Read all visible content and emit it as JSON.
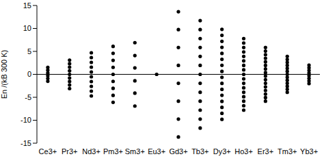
{
  "chart_data": {
    "type": "scatter",
    "y_label": "En /(kB 300 K)",
    "categories": [
      "Ce3+",
      "Pr3+",
      "Nd3+",
      "Pm3+",
      "Sm3+",
      "Eu3+",
      "Gd3+",
      "Tb3+",
      "Dy3+",
      "Ho3+",
      "Er3+",
      "Tm3+",
      "Yb3+"
    ],
    "values": [
      [
        -1.5,
        -0.9,
        -0.3,
        0.3,
        0.9,
        1.5
      ],
      [
        -3.1,
        -2.33,
        -1.55,
        -0.78,
        0,
        0.78,
        1.55,
        2.33,
        3.1
      ],
      [
        -4.7,
        -3.66,
        -2.61,
        -1.57,
        -0.52,
        0.52,
        1.57,
        2.61,
        3.66,
        4.7
      ],
      [
        -6.1,
        -4.58,
        -3.05,
        -1.53,
        0,
        1.53,
        3.05,
        4.58,
        6.1
      ],
      [
        -6.9,
        -4.1,
        -1.4,
        1.4,
        4.1,
        6.9
      ],
      [
        0
      ],
      [
        -13.65,
        -9.75,
        -5.85,
        -1.95,
        1.95,
        5.85,
        9.75,
        13.65
      ],
      [
        -11.7,
        -9.75,
        -7.8,
        -5.85,
        -3.9,
        -1.95,
        0,
        1.95,
        3.9,
        5.85,
        7.8,
        9.75,
        11.7
      ],
      [
        -9.8,
        -8.5,
        -7.19,
        -5.88,
        -4.57,
        -3.27,
        -1.96,
        -0.65,
        0.65,
        1.96,
        3.27,
        4.57,
        5.88,
        7.19,
        8.5,
        9.8
      ],
      [
        -7.8,
        -6.83,
        -5.85,
        -4.88,
        -3.9,
        -2.93,
        -1.95,
        -0.98,
        0,
        0.98,
        1.95,
        2.93,
        3.9,
        4.88,
        5.85,
        6.83,
        7.8
      ],
      [
        -5.85,
        -5.07,
        -4.29,
        -3.51,
        -2.73,
        -1.95,
        -1.17,
        -0.39,
        0.39,
        1.17,
        1.95,
        2.73,
        3.51,
        4.29,
        5.07,
        5.85
      ],
      [
        -3.9,
        -3.25,
        -2.6,
        -1.95,
        -1.3,
        -0.65,
        0,
        0.65,
        1.3,
        1.95,
        2.6,
        3.25,
        3.9
      ],
      [
        -2.0,
        -1.43,
        -0.86,
        -0.29,
        0.29,
        0.86,
        1.43,
        2.0
      ]
    ],
    "color": "#000000",
    "marker": "circle",
    "reference_line": 0,
    "ylim": [
      -15,
      15
    ],
    "yticks": [
      -15,
      -10,
      -5,
      0,
      5,
      10,
      15
    ],
    "grid": false
  }
}
